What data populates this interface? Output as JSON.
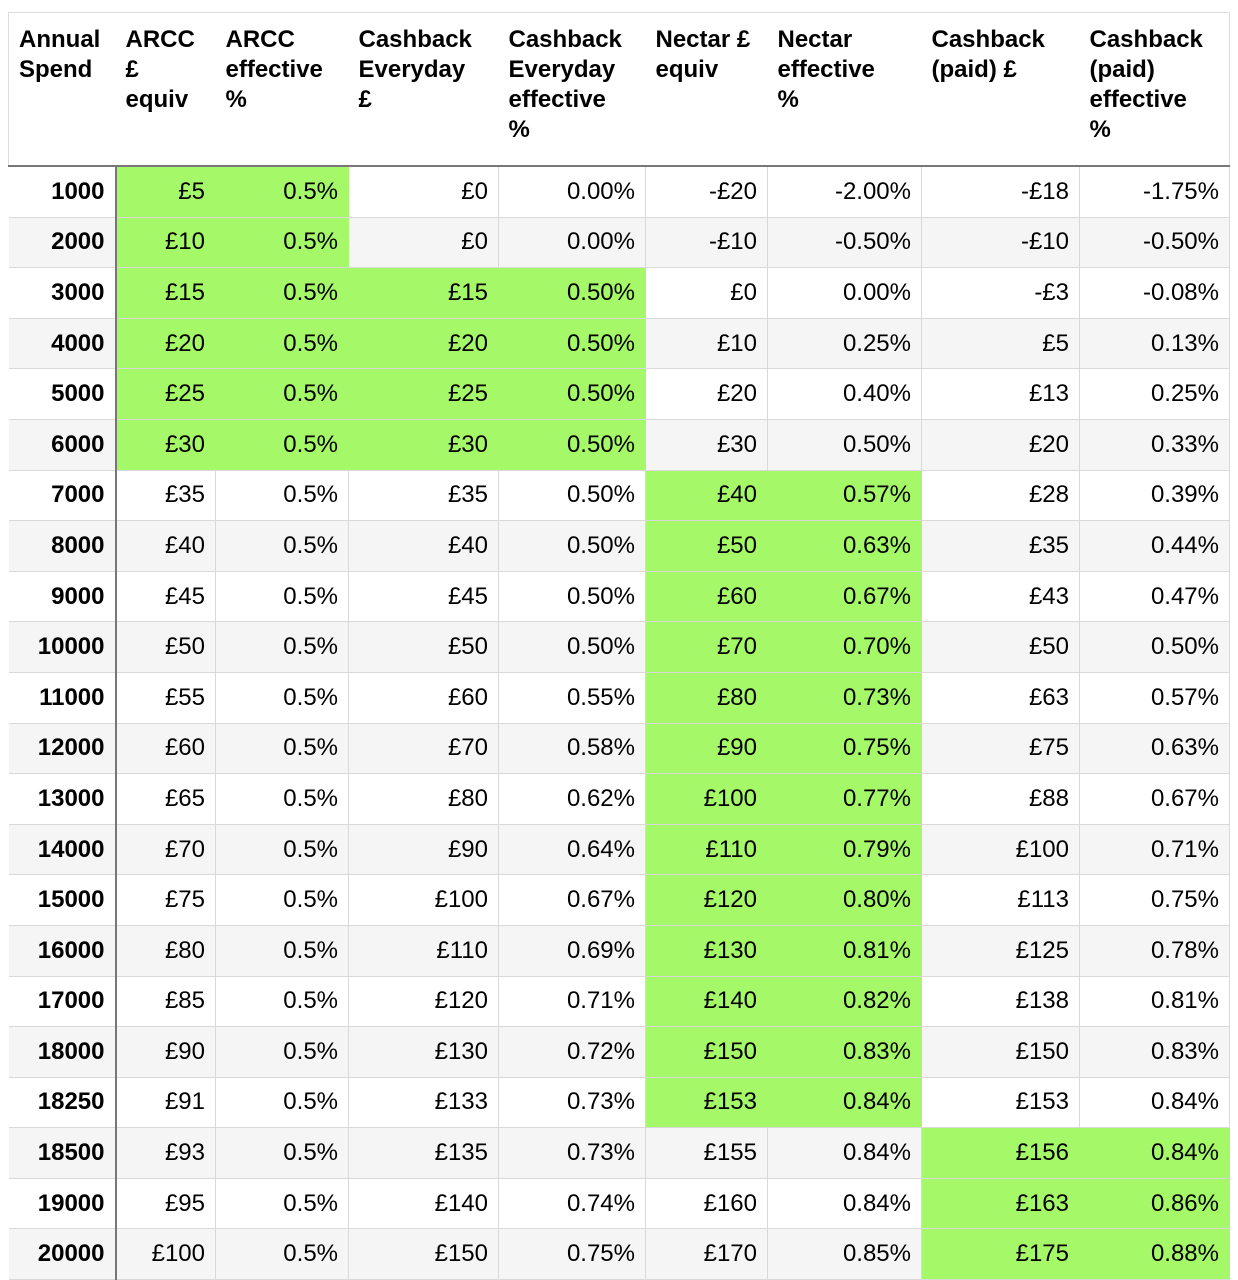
{
  "table": {
    "headers": [
      [
        "Annual",
        "Spend"
      ],
      [
        "ARCC",
        "£",
        "equiv"
      ],
      [
        "ARCC",
        "effective",
        "%"
      ],
      [
        "Cashback",
        "Everyday",
        "£"
      ],
      [
        "Cashback",
        "Everyday",
        "effective",
        "%"
      ],
      [
        "Nectar £",
        "equiv"
      ],
      [
        "Nectar",
        "effective",
        "%"
      ],
      [
        "Cashback",
        "(paid) £"
      ],
      [
        "Cashback",
        "(paid)",
        "effective",
        "%"
      ]
    ],
    "rows": [
      [
        "1000",
        "£5",
        "0.5%",
        "£0",
        "0.00%",
        "-£20",
        "-2.00%",
        "-£18",
        "-1.75%"
      ],
      [
        "2000",
        "£10",
        "0.5%",
        "£0",
        "0.00%",
        "-£10",
        "-0.50%",
        "-£10",
        "-0.50%"
      ],
      [
        "3000",
        "£15",
        "0.5%",
        "£15",
        "0.50%",
        "£0",
        "0.00%",
        "-£3",
        "-0.08%"
      ],
      [
        "4000",
        "£20",
        "0.5%",
        "£20",
        "0.50%",
        "£10",
        "0.25%",
        "£5",
        "0.13%"
      ],
      [
        "5000",
        "£25",
        "0.5%",
        "£25",
        "0.50%",
        "£20",
        "0.40%",
        "£13",
        "0.25%"
      ],
      [
        "6000",
        "£30",
        "0.5%",
        "£30",
        "0.50%",
        "£30",
        "0.50%",
        "£20",
        "0.33%"
      ],
      [
        "7000",
        "£35",
        "0.5%",
        "£35",
        "0.50%",
        "£40",
        "0.57%",
        "£28",
        "0.39%"
      ],
      [
        "8000",
        "£40",
        "0.5%",
        "£40",
        "0.50%",
        "£50",
        "0.63%",
        "£35",
        "0.44%"
      ],
      [
        "9000",
        "£45",
        "0.5%",
        "£45",
        "0.50%",
        "£60",
        "0.67%",
        "£43",
        "0.47%"
      ],
      [
        "10000",
        "£50",
        "0.5%",
        "£50",
        "0.50%",
        "£70",
        "0.70%",
        "£50",
        "0.50%"
      ],
      [
        "11000",
        "£55",
        "0.5%",
        "£60",
        "0.55%",
        "£80",
        "0.73%",
        "£63",
        "0.57%"
      ],
      [
        "12000",
        "£60",
        "0.5%",
        "£70",
        "0.58%",
        "£90",
        "0.75%",
        "£75",
        "0.63%"
      ],
      [
        "13000",
        "£65",
        "0.5%",
        "£80",
        "0.62%",
        "£100",
        "0.77%",
        "£88",
        "0.67%"
      ],
      [
        "14000",
        "£70",
        "0.5%",
        "£90",
        "0.64%",
        "£110",
        "0.79%",
        "£100",
        "0.71%"
      ],
      [
        "15000",
        "£75",
        "0.5%",
        "£100",
        "0.67%",
        "£120",
        "0.80%",
        "£113",
        "0.75%"
      ],
      [
        "16000",
        "£80",
        "0.5%",
        "£110",
        "0.69%",
        "£130",
        "0.81%",
        "£125",
        "0.78%"
      ],
      [
        "17000",
        "£85",
        "0.5%",
        "£120",
        "0.71%",
        "£140",
        "0.82%",
        "£138",
        "0.81%"
      ],
      [
        "18000",
        "£90",
        "0.5%",
        "£130",
        "0.72%",
        "£150",
        "0.83%",
        "£150",
        "0.83%"
      ],
      [
        "18250",
        "£91",
        "0.5%",
        "£133",
        "0.73%",
        "£153",
        "0.84%",
        "£153",
        "0.84%"
      ],
      [
        "18500",
        "£93",
        "0.5%",
        "£135",
        "0.73%",
        "£155",
        "0.84%",
        "£156",
        "0.84%"
      ],
      [
        "19000",
        "£95",
        "0.5%",
        "£140",
        "0.74%",
        "£160",
        "0.84%",
        "£163",
        "0.86%"
      ],
      [
        "20000",
        "£100",
        "0.5%",
        "£150",
        "0.75%",
        "£170",
        "0.85%",
        "£175",
        "0.88%"
      ]
    ],
    "highlighted": [
      [
        1,
        2
      ],
      [
        1,
        2
      ],
      [
        1,
        2,
        3,
        4
      ],
      [
        1,
        2,
        3,
        4
      ],
      [
        1,
        2,
        3,
        4
      ],
      [
        1,
        2,
        3,
        4
      ],
      [
        5,
        6
      ],
      [
        5,
        6
      ],
      [
        5,
        6
      ],
      [
        5,
        6
      ],
      [
        5,
        6
      ],
      [
        5,
        6
      ],
      [
        5,
        6
      ],
      [
        5,
        6
      ],
      [
        5,
        6
      ],
      [
        5,
        6
      ],
      [
        5,
        6
      ],
      [
        5,
        6
      ],
      [
        5,
        6
      ],
      [
        7,
        8
      ],
      [
        7,
        8
      ],
      [
        7,
        8
      ]
    ],
    "highlight_color": "#a5f867",
    "alt_row_color": "#f5f5f5"
  }
}
